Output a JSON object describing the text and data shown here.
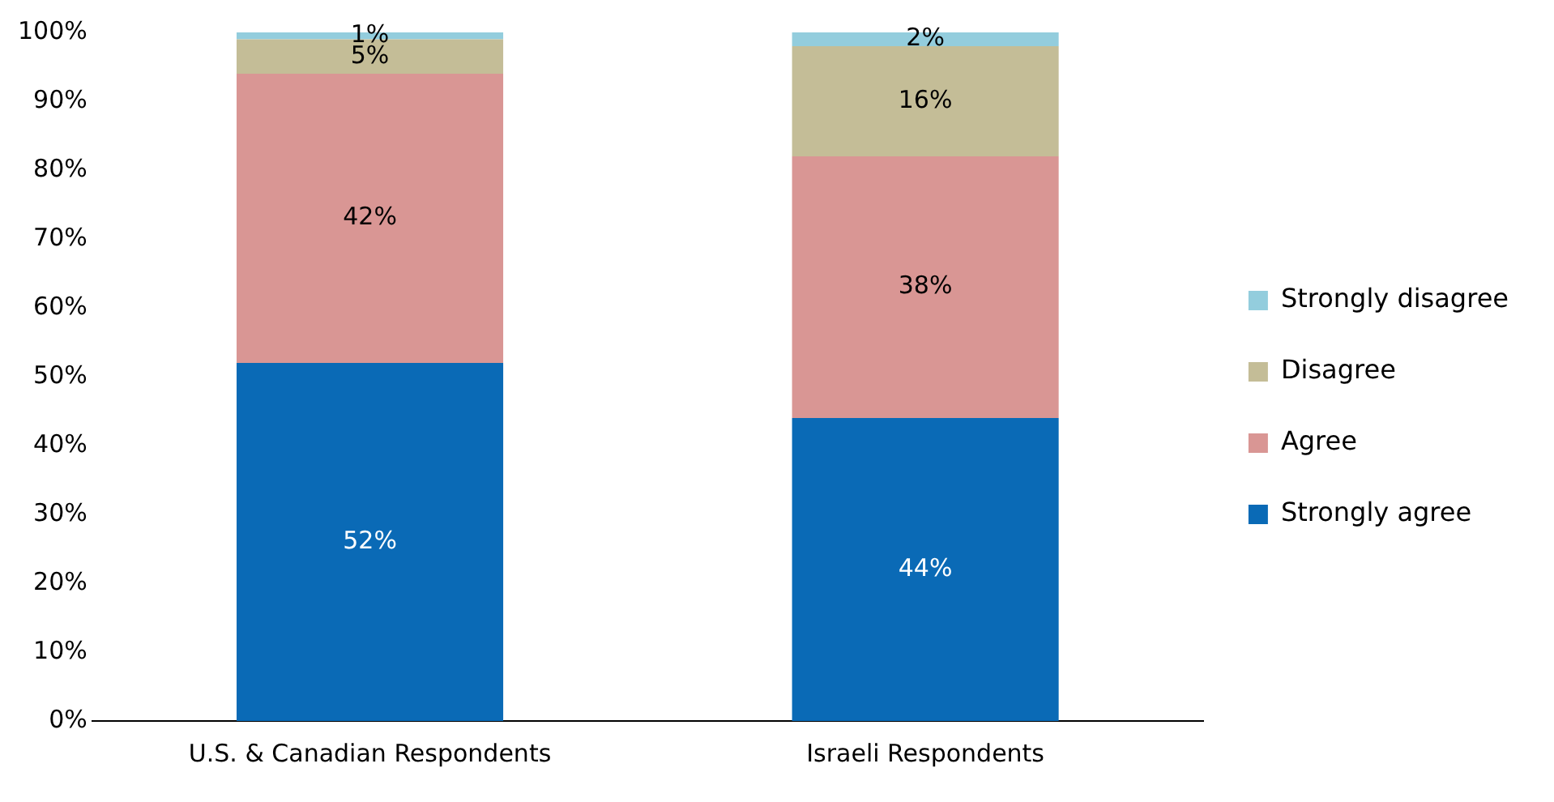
{
  "chart_data": {
    "type": "bar",
    "stacked": true,
    "categories": [
      "U.S. & Canadian Respondents",
      "Israeli Respondents"
    ],
    "series": [
      {
        "name": "Strongly agree",
        "color": "#0a6ab6",
        "values": [
          52,
          44
        ],
        "value_labels": [
          "52%",
          "44%"
        ]
      },
      {
        "name": "Agree",
        "color": "#d99694",
        "values": [
          42,
          38
        ],
        "value_labels": [
          "42%",
          "38%"
        ]
      },
      {
        "name": "Disagree",
        "color": "#c4bd97",
        "values": [
          5,
          16
        ],
        "value_labels": [
          "5%",
          "16%"
        ]
      },
      {
        "name": "Strongly disagree",
        "color": "#93cddd",
        "values": [
          1,
          2
        ],
        "value_labels": [
          "1%",
          "2%"
        ]
      }
    ],
    "ylim": [
      0,
      100
    ],
    "yticks": [
      {
        "value": 0,
        "label": "0%"
      },
      {
        "value": 10,
        "label": "10%"
      },
      {
        "value": 20,
        "label": "20%"
      },
      {
        "value": 30,
        "label": "30%"
      },
      {
        "value": 40,
        "label": "40%"
      },
      {
        "value": 50,
        "label": "50%"
      },
      {
        "value": 60,
        "label": "60%"
      },
      {
        "value": 70,
        "label": "70%"
      },
      {
        "value": 80,
        "label": "80%"
      },
      {
        "value": 90,
        "label": "90%"
      },
      {
        "value": 100,
        "label": "100%"
      }
    ],
    "grid": false,
    "legend": "right"
  }
}
